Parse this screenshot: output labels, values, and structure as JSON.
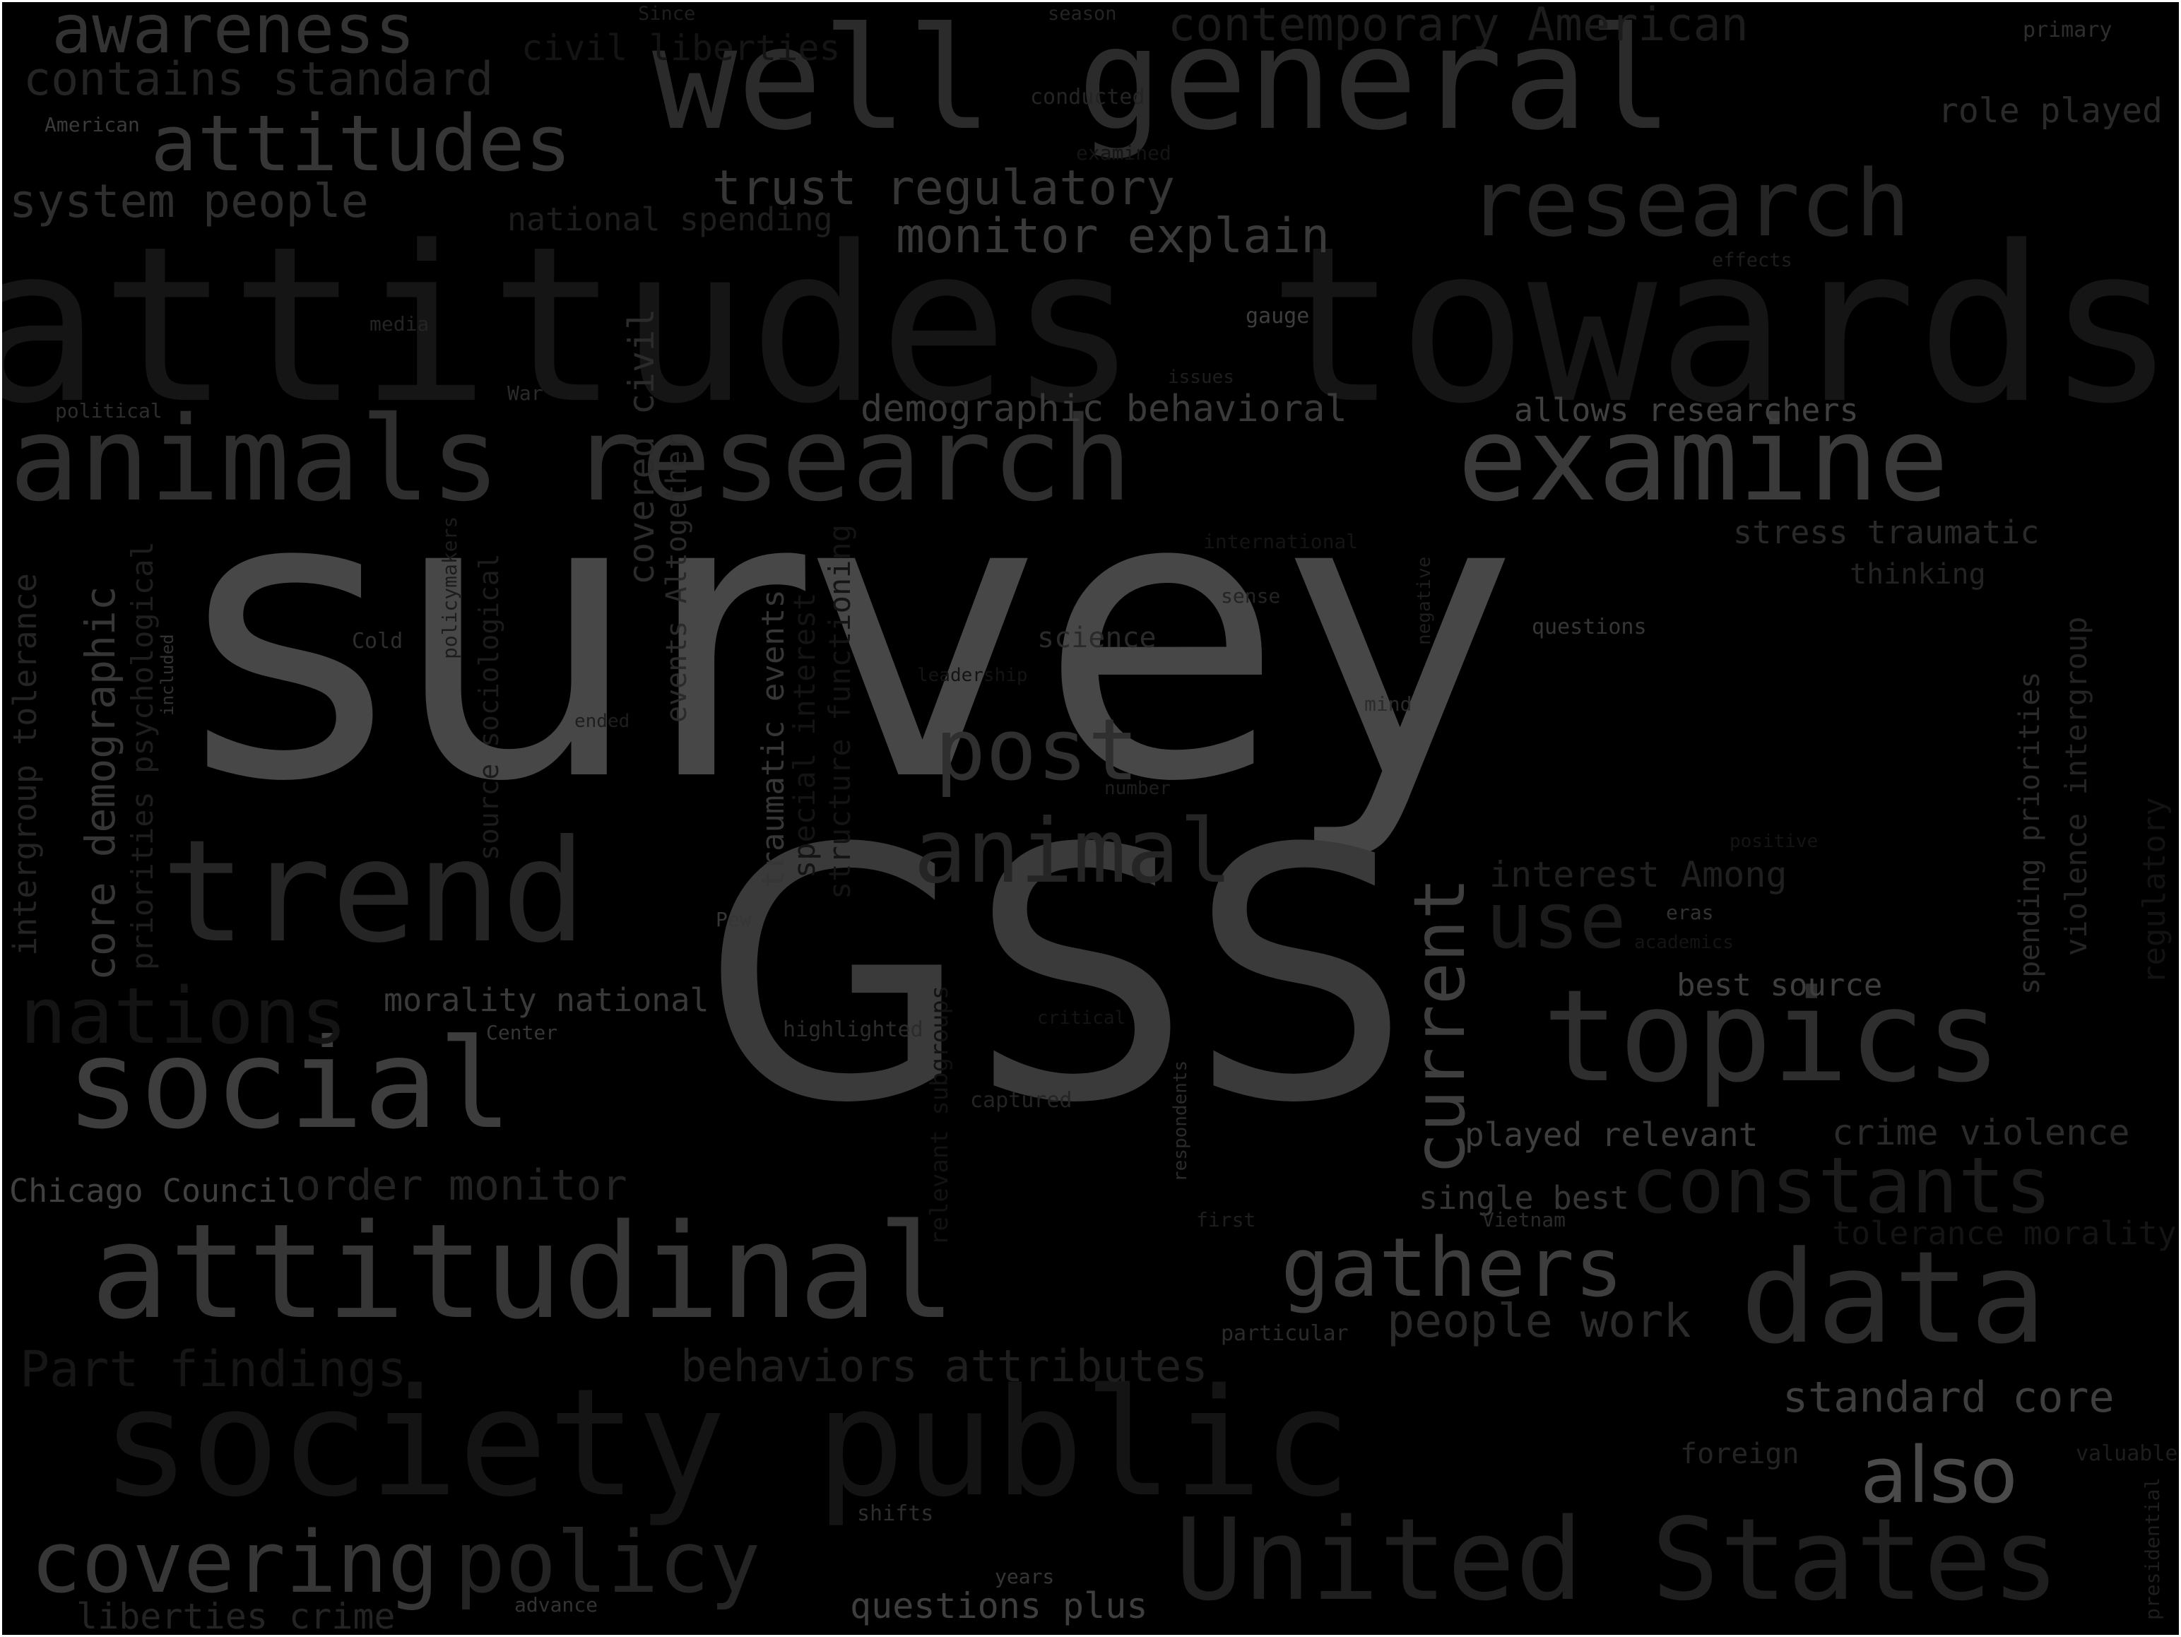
{
  "background_color": "#000000",
  "words": [
    {
      "text": "survey",
      "color": "#474747"
    },
    {
      "text": "GSS",
      "color": "#3a3a3a"
    },
    {
      "text": "attitudes towards",
      "color": "#151515"
    },
    {
      "text": "well general",
      "color": "#2b2b2b"
    },
    {
      "text": "animals research",
      "color": "#2e2e2e"
    },
    {
      "text": "examine",
      "color": "#3a3a3a"
    },
    {
      "text": "trend",
      "color": "#252525"
    },
    {
      "text": "social",
      "color": "#3d3d3d"
    },
    {
      "text": "topics",
      "color": "#2e2e2e"
    },
    {
      "text": "attitudinal",
      "color": "#363636"
    },
    {
      "text": "data",
      "color": "#2b2b2b"
    },
    {
      "text": "society public",
      "color": "#141414"
    },
    {
      "text": "United States",
      "color": "#1f1f1f"
    },
    {
      "text": "research",
      "color": "#252525"
    },
    {
      "text": "attitudes",
      "color": "#363636"
    },
    {
      "text": "awareness",
      "color": "#333333"
    },
    {
      "text": "contains standard",
      "color": "#242424"
    },
    {
      "text": "system people",
      "color": "#2e2e2e"
    },
    {
      "text": "trust regulatory",
      "color": "#363636"
    },
    {
      "text": "monitor explain",
      "color": "#3a3a3a"
    },
    {
      "text": "contemporary American",
      "color": "#1c1c1c"
    },
    {
      "text": "role played",
      "color": "#2a2a2a"
    },
    {
      "text": "national spending",
      "color": "#1e1e1e"
    },
    {
      "text": "civil liberties",
      "color": "#141414"
    },
    {
      "text": "demographic behavioral",
      "color": "#3a3a3a"
    },
    {
      "text": "allows researchers",
      "color": "#404040"
    },
    {
      "text": "post",
      "color": "#2f2f2f"
    },
    {
      "text": "animal",
      "color": "#252525"
    },
    {
      "text": "current",
      "color": "#3e3e3e"
    },
    {
      "text": "use",
      "color": "#1c1c1c"
    },
    {
      "text": "interest Among",
      "color": "#202020"
    },
    {
      "text": "best source",
      "color": "#3e3e3e"
    },
    {
      "text": "stress traumatic",
      "color": "#2a2a2a"
    },
    {
      "text": "thinking",
      "color": "#242424"
    },
    {
      "text": "constants",
      "color": "#1c1c1c"
    },
    {
      "text": "crime violence",
      "color": "#2b2b2b"
    },
    {
      "text": "played relevant",
      "color": "#3e3e3e"
    },
    {
      "text": "single best",
      "color": "#363636"
    },
    {
      "text": "tolerance morality",
      "color": "#141414"
    },
    {
      "text": "gathers",
      "color": "#3d3d3d"
    },
    {
      "text": "people work",
      "color": "#2b2b2b"
    },
    {
      "text": "standard core",
      "color": "#3e3e3e"
    },
    {
      "text": "also",
      "color": "#4a4a4a"
    },
    {
      "text": "foreign",
      "color": "#242424"
    },
    {
      "text": "valuable",
      "color": "#1e1e1e"
    },
    {
      "text": "presidential",
      "color": "#1e1e1e"
    },
    {
      "text": "nations",
      "color": "#141414"
    },
    {
      "text": "morality national",
      "color": "#3a3a3a"
    },
    {
      "text": "Chicago Council",
      "color": "#404040"
    },
    {
      "text": "order monitor",
      "color": "#242424"
    },
    {
      "text": "Part findings",
      "color": "#161616"
    },
    {
      "text": "behaviors attributes",
      "color": "#1e1e1e"
    },
    {
      "text": "covering",
      "color": "#363636"
    },
    {
      "text": "policy",
      "color": "#242424"
    },
    {
      "text": "liberties crime",
      "color": "#242424"
    },
    {
      "text": "questions plus",
      "color": "#3e3e3e"
    },
    {
      "text": "core demographic",
      "color": "#363636"
    },
    {
      "text": "intergroup tolerance",
      "color": "#242424"
    },
    {
      "text": "priorities psychological",
      "color": "#1e1e1e"
    },
    {
      "text": "covered civil",
      "color": "#2b2b2b"
    },
    {
      "text": "events Altogether",
      "color": "#2a2a2a"
    },
    {
      "text": "traumatic events",
      "color": "#363636"
    },
    {
      "text": "special interest",
      "color": "#141414"
    },
    {
      "text": "structure functioning",
      "color": "#141414"
    },
    {
      "text": "source sociological",
      "color": "#1c1c1c"
    },
    {
      "text": "spending priorities",
      "color": "#2b2b2b"
    },
    {
      "text": "violence intergroup",
      "color": "#242424"
    },
    {
      "text": "regulatory",
      "color": "#121212"
    },
    {
      "text": "relevant subgroups",
      "color": "#121212"
    },
    {
      "text": "policymakers",
      "color": "#1c1c1c"
    },
    {
      "text": "negative",
      "color": "#1e1e1e"
    },
    {
      "text": "respondents",
      "color": "#2b2b2b"
    },
    {
      "text": "included",
      "color": "#333333"
    },
    {
      "text": "Since",
      "color": "#1e1e1e"
    },
    {
      "text": "season",
      "color": "#242424"
    },
    {
      "text": "primary",
      "color": "#2e2e2e"
    },
    {
      "text": "American",
      "color": "#3a3a3a"
    },
    {
      "text": "conducted",
      "color": "#242424"
    },
    {
      "text": "examined",
      "color": "#141414"
    },
    {
      "text": "effects",
      "color": "#1e1e1e"
    },
    {
      "text": "media",
      "color": "#242424"
    },
    {
      "text": "gauge",
      "color": "#3e3e3e"
    },
    {
      "text": "issues",
      "color": "#1e1e1e"
    },
    {
      "text": "War",
      "color": "#2b2b2b"
    },
    {
      "text": "political",
      "color": "#2e2e2e"
    },
    {
      "text": "international",
      "color": "#141414"
    },
    {
      "text": "sense",
      "color": "#242424"
    },
    {
      "text": "questions",
      "color": "#363636"
    },
    {
      "text": "Cold",
      "color": "#2e2e2e"
    },
    {
      "text": "science",
      "color": "#2a2a2a"
    },
    {
      "text": "leadership",
      "color": "#141414"
    },
    {
      "text": "mind",
      "color": "#2b2b2b"
    },
    {
      "text": "ended",
      "color": "#1e1e1e"
    },
    {
      "text": "number",
      "color": "#1e1e1e"
    },
    {
      "text": "positive",
      "color": "#141414"
    },
    {
      "text": "eras",
      "color": "#333333"
    },
    {
      "text": "academics",
      "color": "#141414"
    },
    {
      "text": "Pew",
      "color": "#363636"
    },
    {
      "text": "Center",
      "color": "#363636"
    },
    {
      "text": "highlighted",
      "color": "#2b2b2b"
    },
    {
      "text": "critical",
      "color": "#141414"
    },
    {
      "text": "captured",
      "color": "#242424"
    },
    {
      "text": "first",
      "color": "#1e1e1e"
    },
    {
      "text": "Vietnam",
      "color": "#2b2b2b"
    },
    {
      "text": "particular",
      "color": "#2b2b2b"
    },
    {
      "text": "shifts",
      "color": "#2e2e2e"
    },
    {
      "text": "years",
      "color": "#363636"
    },
    {
      "text": "advance",
      "color": "#333333"
    }
  ]
}
